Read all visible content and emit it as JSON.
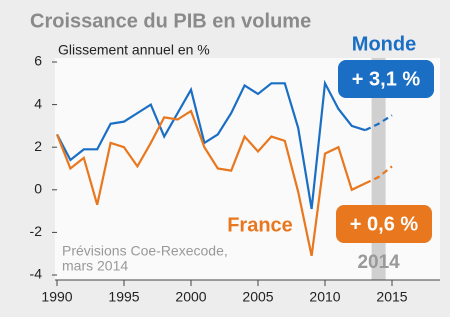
{
  "chart_data": {
    "type": "line",
    "title": "Croissance du PIB en volume",
    "y_label": "Glissement annuel en %",
    "x": [
      1990,
      1991,
      1992,
      1993,
      1994,
      1995,
      1996,
      1997,
      1998,
      1999,
      2000,
      2001,
      2002,
      2003,
      2004,
      2005,
      2006,
      2007,
      2008,
      2009,
      2010,
      2011,
      2012,
      2013,
      2014,
      2015
    ],
    "series": [
      {
        "name": "Monde",
        "color": "#1a6fc4",
        "values": [
          2.6,
          1.4,
          1.9,
          1.9,
          3.1,
          3.2,
          3.6,
          4.0,
          2.5,
          3.6,
          4.7,
          2.2,
          2.6,
          3.6,
          4.9,
          4.5,
          5.0,
          5.0,
          2.9,
          -0.9,
          5.0,
          3.8,
          3.0,
          2.8,
          3.1,
          3.5
        ],
        "value_labels": [
          null,
          null,
          null,
          null,
          null,
          null,
          null,
          null,
          null,
          null,
          null,
          null,
          null,
          null,
          null,
          null,
          null,
          null,
          null,
          null,
          null,
          null,
          null,
          null,
          "+ 3,1 %",
          null
        ]
      },
      {
        "name": "France",
        "color": "#e8771e",
        "values": [
          2.6,
          1.0,
          1.5,
          -0.7,
          2.2,
          2.0,
          1.1,
          2.2,
          3.4,
          3.3,
          3.7,
          2.0,
          1.0,
          0.9,
          2.5,
          1.8,
          2.5,
          2.3,
          -0.1,
          -3.1,
          1.7,
          2.0,
          0.0,
          0.3,
          0.6,
          1.1
        ],
        "value_labels": [
          null,
          null,
          null,
          null,
          null,
          null,
          null,
          null,
          null,
          null,
          null,
          null,
          null,
          null,
          null,
          null,
          null,
          null,
          null,
          null,
          null,
          null,
          null,
          null,
          "+ 0,6 %",
          null
        ]
      }
    ],
    "dashed_from": 2013,
    "highlight": {
      "value": 2014,
      "label": "2014"
    },
    "source": [
      "Prévisions Coe-Rexecode,",
      "mars 2014"
    ],
    "xlim": [
      1990,
      2015
    ],
    "xticks": [
      1990,
      1995,
      2000,
      2005,
      2010,
      2015
    ],
    "ylim": [
      -4,
      6
    ],
    "yticks": [
      -4,
      -2,
      0,
      2,
      4,
      6
    ]
  }
}
